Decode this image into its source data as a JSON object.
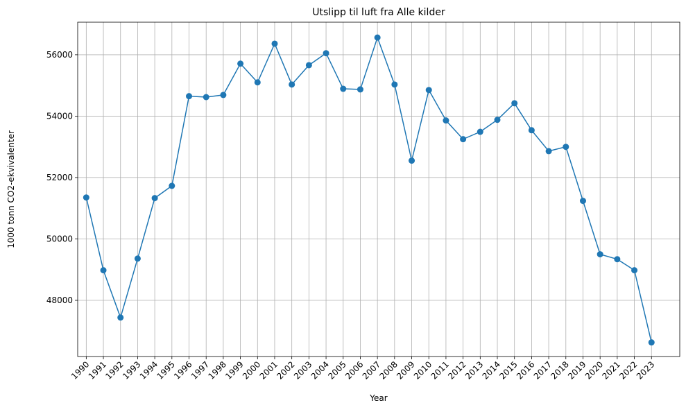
{
  "chart_data": {
    "type": "line",
    "title": "Utslipp til luft fra Alle kilder",
    "x_label": "Year",
    "y_label": "1000 tonn CO2-ekvivalenter",
    "x": [
      1990,
      1991,
      1992,
      1993,
      1994,
      1995,
      1996,
      1997,
      1998,
      1999,
      2000,
      2001,
      2002,
      2003,
      2004,
      2005,
      2006,
      2007,
      2008,
      2009,
      2010,
      2011,
      2012,
      2013,
      2014,
      2015,
      2016,
      2017,
      2018,
      2019,
      2020,
      2021,
      2022,
      2023
    ],
    "series": [
      {
        "name": "Alle kilder",
        "color": "#1f77b4",
        "values": [
          51350,
          48980,
          47440,
          49360,
          51330,
          51730,
          54650,
          54620,
          54690,
          55710,
          55100,
          56360,
          55030,
          55660,
          56050,
          54890,
          54870,
          56560,
          55030,
          52550,
          54850,
          53860,
          53250,
          53490,
          53880,
          54420,
          53540,
          52860,
          53000,
          51240,
          49500,
          49340,
          48980,
          46630
        ]
      }
    ],
    "xlim": [
      1989.5,
      2024.65
    ],
    "xticks": [
      1990,
      1991,
      1992,
      1993,
      1994,
      1995,
      1996,
      1997,
      1998,
      1999,
      2000,
      2001,
      2002,
      2003,
      2004,
      2005,
      2006,
      2007,
      2008,
      2009,
      2010,
      2011,
      2012,
      2013,
      2014,
      2015,
      2016,
      2017,
      2018,
      2019,
      2020,
      2021,
      2022,
      2023
    ],
    "ylim": [
      46170,
      57060
    ],
    "yticks": [
      48000,
      50000,
      52000,
      54000,
      56000
    ],
    "grid": true
  }
}
